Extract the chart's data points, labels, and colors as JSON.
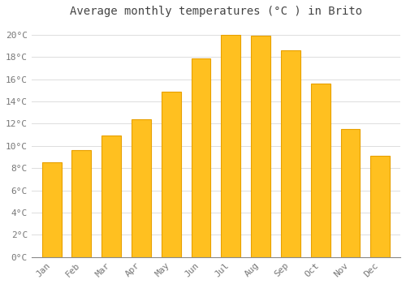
{
  "title": "Average monthly temperatures (°C ) in Brito",
  "months": [
    "Jan",
    "Feb",
    "Mar",
    "Apr",
    "May",
    "Jun",
    "Jul",
    "Aug",
    "Sep",
    "Oct",
    "Nov",
    "Dec"
  ],
  "temperatures": [
    8.5,
    9.6,
    10.9,
    12.4,
    14.9,
    17.9,
    20.0,
    19.9,
    18.6,
    15.6,
    11.5,
    9.1
  ],
  "bar_color": "#FFC020",
  "bar_edge_color": "#E8A000",
  "background_color": "#FFFFFF",
  "grid_color": "#DDDDDD",
  "ylim": [
    0,
    21
  ],
  "yticks": [
    0,
    2,
    4,
    6,
    8,
    10,
    12,
    14,
    16,
    18,
    20
  ],
  "ytick_labels": [
    "0°C",
    "2°C",
    "4°C",
    "6°C",
    "8°C",
    "10°C",
    "12°C",
    "14°C",
    "16°C",
    "18°C",
    "20°C"
  ],
  "title_fontsize": 10,
  "tick_fontsize": 8,
  "font_family": "monospace",
  "tick_color": "#777777",
  "title_color": "#444444"
}
